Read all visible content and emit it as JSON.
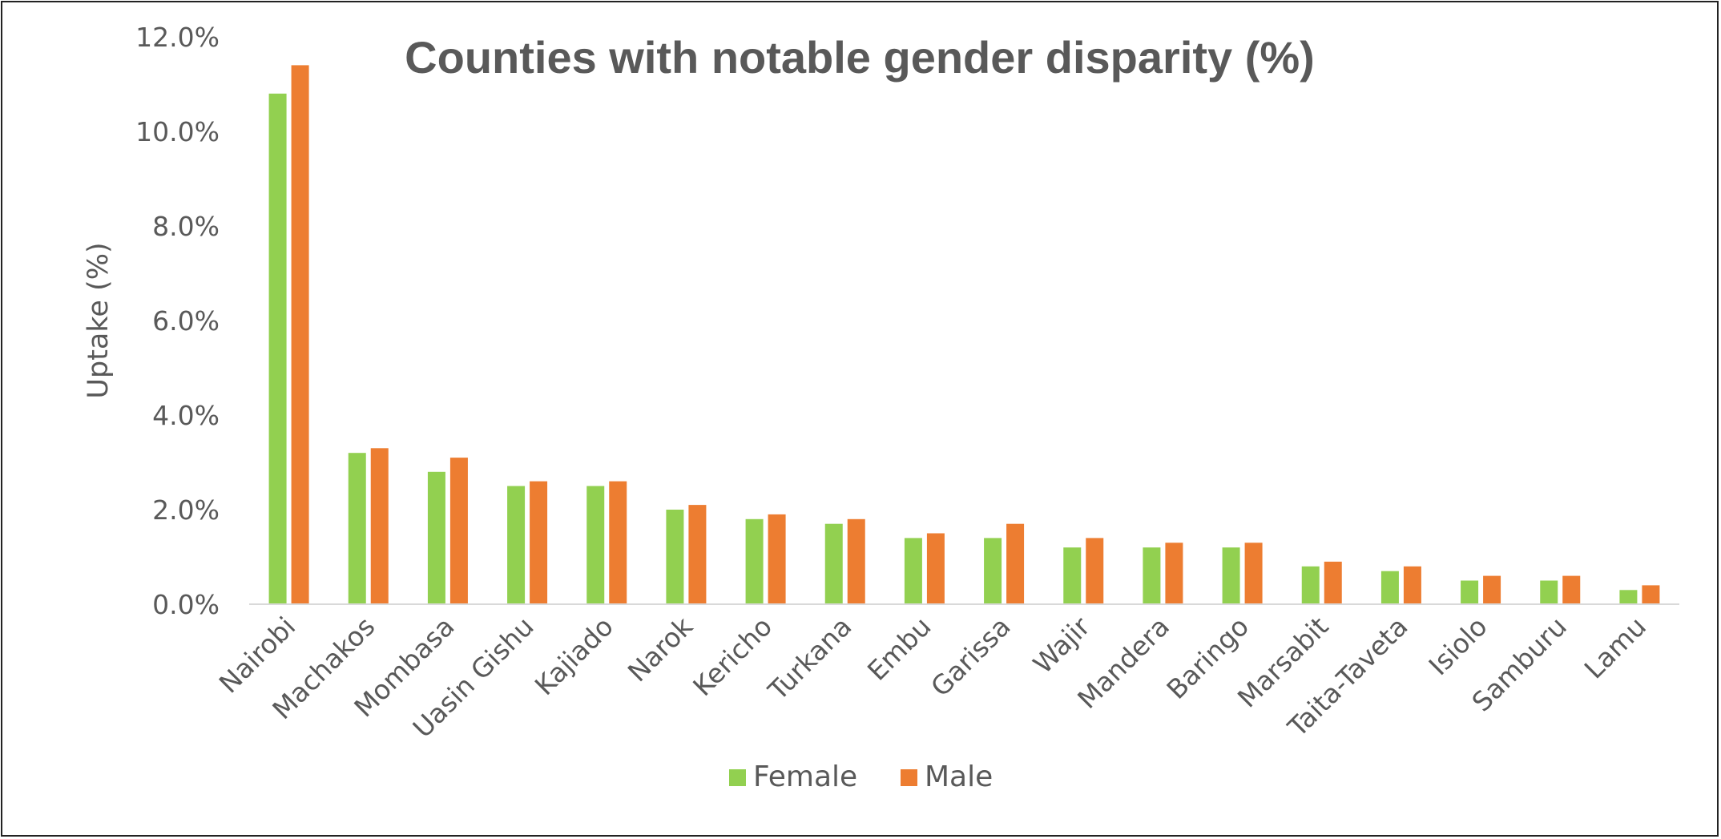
{
  "chart_data": {
    "type": "bar",
    "title": "Counties with notable gender disparity (%)",
    "xlabel": "",
    "ylabel": "Uptake (%)",
    "ylim": [
      0,
      12
    ],
    "yticks": [
      "0.0%",
      "2.0%",
      "4.0%",
      "6.0%",
      "8.0%",
      "10.0%",
      "12.0%"
    ],
    "grid": false,
    "legend_position": "bottom",
    "categories": [
      "Nairobi",
      "Machakos",
      "Mombasa",
      "Uasin Gishu",
      "Kajiado",
      "Narok",
      "Kericho",
      "Turkana",
      "Embu",
      "Garissa",
      "Wajir",
      "Mandera",
      "Baringo",
      "Marsabit",
      "Taita-Taveta",
      "Isiolo",
      "Samburu",
      "Lamu"
    ],
    "series": [
      {
        "name": "Female",
        "color": "#92D050",
        "values": [
          10.8,
          3.2,
          2.8,
          2.5,
          2.5,
          2.0,
          1.8,
          1.7,
          1.4,
          1.4,
          1.2,
          1.2,
          1.2,
          0.8,
          0.7,
          0.5,
          0.5,
          0.3
        ]
      },
      {
        "name": "Male",
        "color": "#ED7D31",
        "values": [
          11.4,
          3.3,
          3.1,
          2.6,
          2.6,
          2.1,
          1.9,
          1.8,
          1.5,
          1.7,
          1.4,
          1.3,
          1.3,
          0.9,
          0.8,
          0.6,
          0.6,
          0.4
        ]
      }
    ]
  }
}
